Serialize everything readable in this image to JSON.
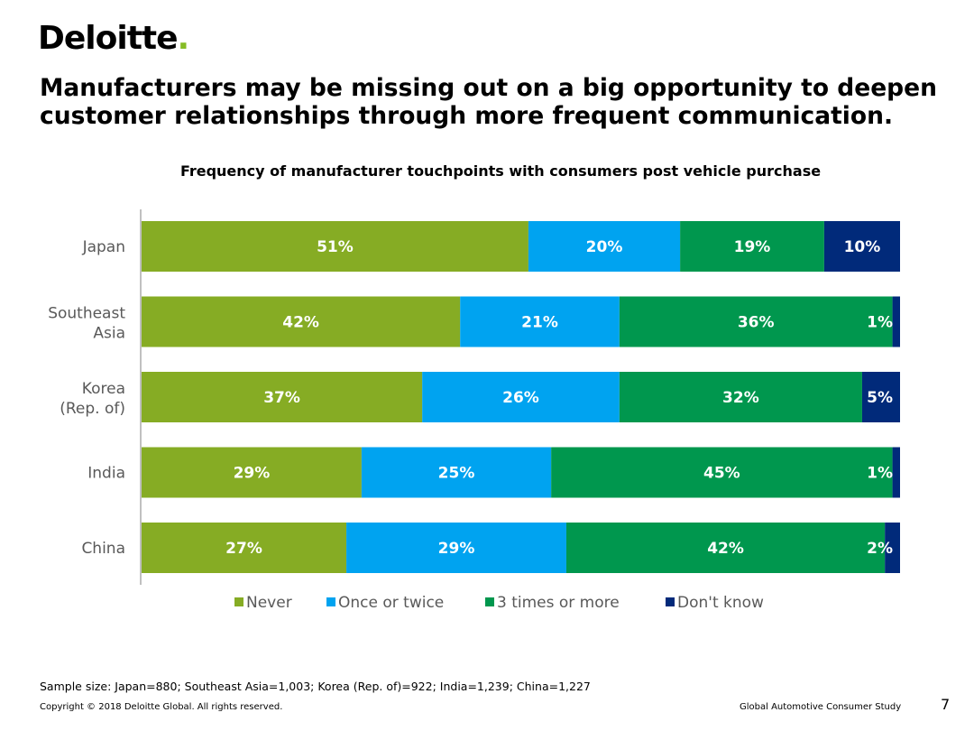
{
  "brand": {
    "name": "Deloitte",
    "dot": ".",
    "accent": "#86BC25"
  },
  "headline": "Manufacturers may be missing out on a big opportunity to deepen customer relationships through more frequent communication.",
  "footer": {
    "sample_size": "Sample size: Japan=880; Southeast Asia=1,003; Korea (Rep. of)=922; India=1,239; China=1,227",
    "copyright": "Copyright © 2018 Deloitte Global. All rights reserved.",
    "study": "Global Automotive Consumer Study",
    "page_number": "7"
  },
  "chart_data": {
    "type": "bar",
    "orientation": "horizontal",
    "stacked": true,
    "title": "Frequency of manufacturer touchpoints with consumers post vehicle purchase",
    "categories": [
      "Japan",
      "Southeast Asia",
      "Korea (Rep. of)",
      "India",
      "China"
    ],
    "category_lines": [
      [
        "Japan"
      ],
      [
        "Southeast",
        "Asia"
      ],
      [
        "Korea",
        "(Rep. of)"
      ],
      [
        "India"
      ],
      [
        "China"
      ]
    ],
    "series": [
      {
        "name": "Never",
        "color": "#86AC24",
        "values": [
          51,
          42,
          37,
          29,
          27
        ]
      },
      {
        "name": "Once or twice",
        "color": "#00A3F0",
        "values": [
          20,
          21,
          26,
          25,
          29
        ]
      },
      {
        "name": "3 times or more",
        "color": "#00974E",
        "values": [
          19,
          36,
          32,
          45,
          42
        ]
      },
      {
        "name": "Don't know",
        "color": "#012A7A",
        "values": [
          10,
          1,
          5,
          1,
          2
        ]
      }
    ],
    "value_suffix": "%",
    "xlim": [
      0,
      100
    ],
    "legend_position": "bottom"
  }
}
